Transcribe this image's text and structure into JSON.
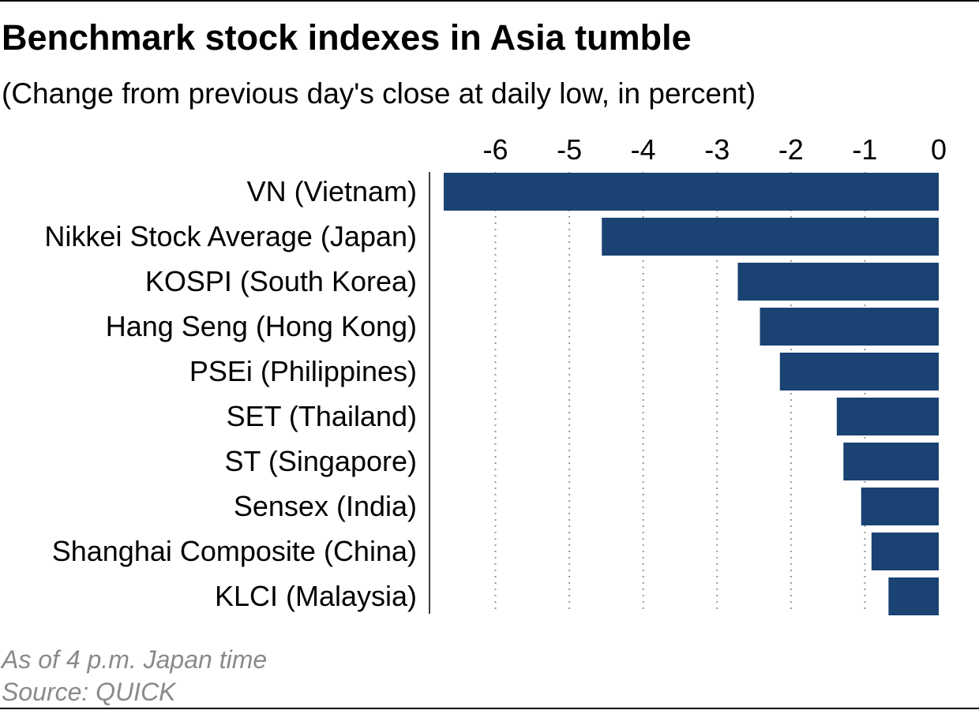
{
  "colors": {
    "bar": "#1a4272",
    "grid": "#9a9a9a",
    "axis": "#000000",
    "footer": "#8a8a8a"
  },
  "chart_data": {
    "type": "bar",
    "orientation": "horizontal",
    "title": "Benchmark stock indexes in Asia tumble",
    "subtitle": "(Change from previous day's close at daily low, in percent)",
    "categories": [
      "VN (Vietnam)",
      "Nikkei Stock Average (Japan)",
      "KOSPI (South Korea)",
      "Hang Seng (Hong Kong)",
      "PSEi (Philippines)",
      "SET (Thailand)",
      "ST (Singapore)",
      "Sensex (India)",
      "Shanghai Composite (China)",
      "KLCI (Malaysia)"
    ],
    "values": [
      -6.7,
      -4.56,
      -2.72,
      -2.42,
      -2.15,
      -1.38,
      -1.29,
      -1.05,
      -0.91,
      -0.68
    ],
    "xlim": [
      -6.7,
      0
    ],
    "xticks": [
      -6,
      -5,
      -4,
      -3,
      -2,
      -1,
      0
    ],
    "tick_labels": [
      "-6",
      "-5",
      "-4",
      "-3",
      "-2",
      "-1",
      "0"
    ],
    "xaxis_position": "top",
    "grid": "vertical dotted"
  },
  "footer": {
    "note": "As of 4 p.m. Japan time",
    "source": "Source: QUICK"
  }
}
